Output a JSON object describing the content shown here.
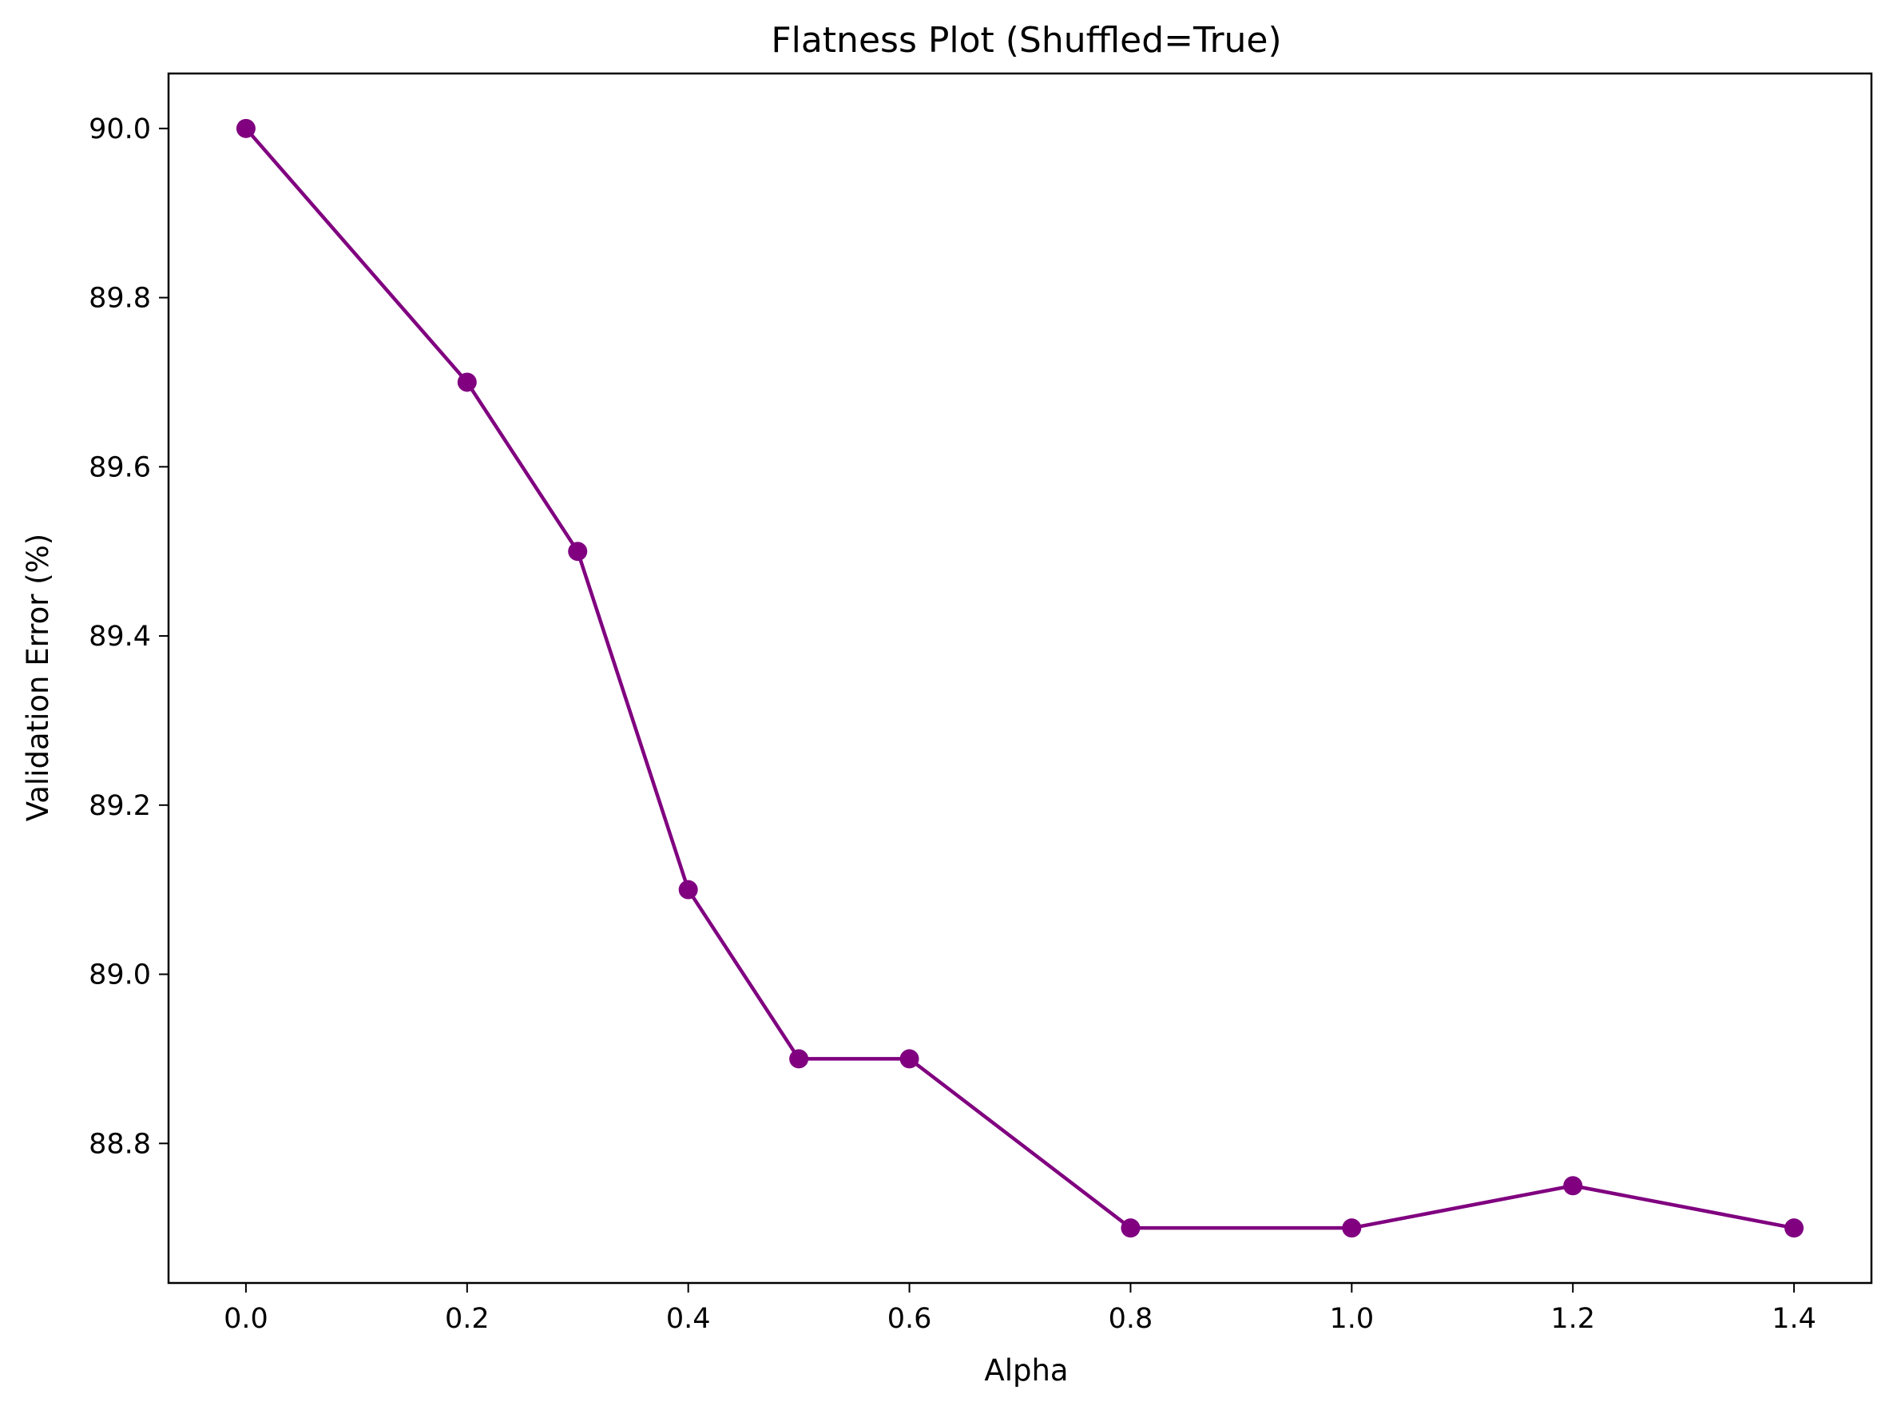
{
  "chart_data": {
    "type": "line",
    "title": "Flatness Plot (Shuffled=True)",
    "xlabel": "Alpha",
    "ylabel": "Validation Error (%)",
    "xlim": [
      -0.07,
      1.47
    ],
    "ylim": [
      88.635,
      90.065
    ],
    "xticks": [
      0.0,
      0.2,
      0.4,
      0.6,
      0.8,
      1.0,
      1.2,
      1.4
    ],
    "xtick_labels": [
      "0.0",
      "0.2",
      "0.4",
      "0.6",
      "0.8",
      "1.0",
      "1.2",
      "1.4"
    ],
    "yticks": [
      88.8,
      89.0,
      89.2,
      89.4,
      89.6,
      89.8,
      90.0
    ],
    "ytick_labels": [
      "88.8",
      "89.0",
      "89.2",
      "89.4",
      "89.6",
      "89.8",
      "90.0"
    ],
    "grid": false,
    "series": [
      {
        "color": "#800080",
        "marker": "circle",
        "x": [
          0.0,
          0.2,
          0.3,
          0.4,
          0.5,
          0.6,
          0.8,
          1.0,
          1.2,
          1.4
        ],
        "y": [
          90.0,
          89.7,
          89.5,
          89.1,
          88.9,
          88.9,
          88.7,
          88.7,
          88.75,
          88.7
        ]
      }
    ]
  }
}
